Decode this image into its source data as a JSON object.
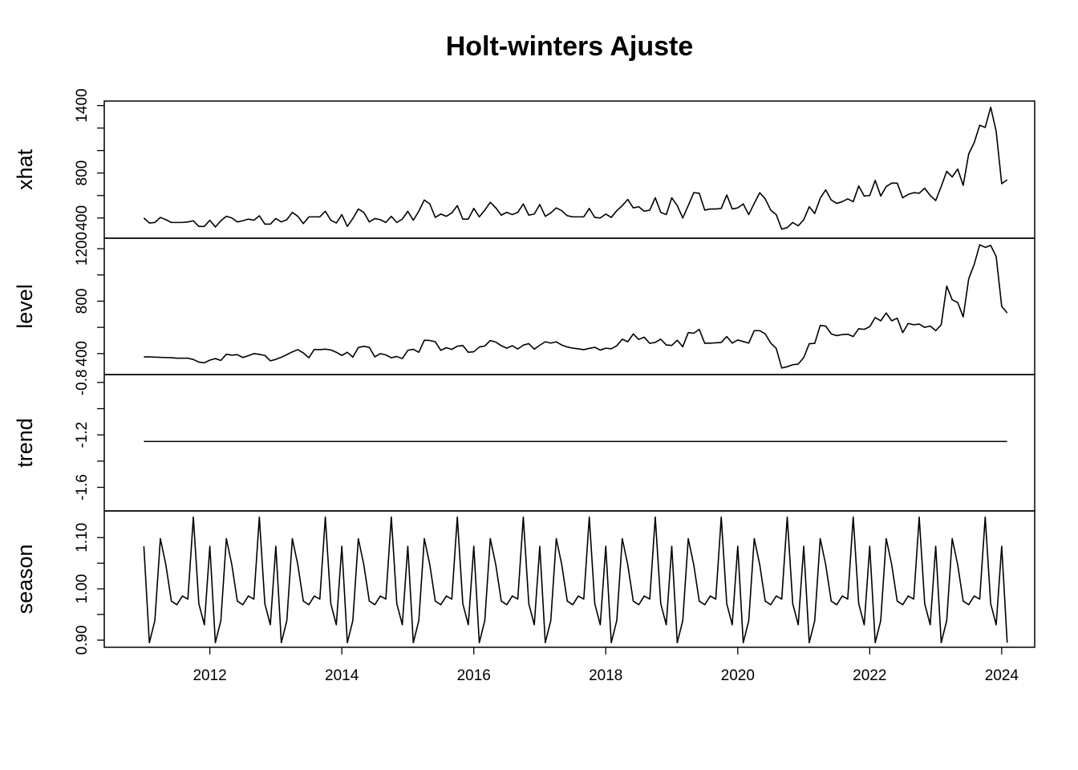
{
  "chart_data": {
    "type": "line",
    "title": "Holt-winters Ajuste",
    "xlabel": "",
    "x_start": 2011.0,
    "x_step": 0.08333333,
    "xlim": [
      2010.4,
      2024.5
    ],
    "x_ticks": [
      2012,
      2014,
      2016,
      2018,
      2020,
      2022,
      2024
    ],
    "x_tick_labels": [
      "2012",
      "2014",
      "2016",
      "2018",
      "2020",
      "2022",
      "2024"
    ],
    "grid": false,
    "legend": "none",
    "series_color": "#000000",
    "panels": [
      {
        "name": "xhat",
        "ylim": [
          220,
          1440
        ],
        "y_ticks": [
          400,
          800,
          1400
        ],
        "y_tick_labels": [
          "400",
          "800",
          "1400"
        ],
        "y_minor_ticks": [
          600,
          1000,
          1200
        ],
        "values": [
          400,
          355,
          360,
          405,
          385,
          360,
          360,
          360,
          365,
          375,
          325,
          325,
          380,
          320,
          375,
          415,
          400,
          365,
          375,
          390,
          380,
          420,
          345,
          345,
          395,
          365,
          385,
          450,
          415,
          350,
          410,
          410,
          410,
          460,
          380,
          355,
          430,
          325,
          395,
          480,
          450,
          365,
          395,
          385,
          360,
          415,
          360,
          390,
          460,
          380,
          460,
          560,
          525,
          405,
          435,
          415,
          445,
          510,
          390,
          390,
          485,
          410,
          470,
          540,
          490,
          425,
          450,
          430,
          450,
          525,
          425,
          435,
          520,
          415,
          445,
          490,
          465,
          420,
          410,
          410,
          410,
          485,
          405,
          400,
          435,
          405,
          465,
          510,
          565,
          490,
          500,
          460,
          470,
          580,
          450,
          430,
          580,
          510,
          400,
          510,
          625,
          620,
          470,
          480,
          480,
          485,
          605,
          480,
          490,
          525,
          430,
          530,
          625,
          570,
          470,
          430,
          300,
          315,
          360,
          330,
          385,
          500,
          440,
          575,
          650,
          560,
          530,
          545,
          570,
          545,
          685,
          595,
          600,
          735,
          595,
          680,
          710,
          710,
          580,
          610,
          625,
          620,
          665,
          600,
          555,
          680,
          815,
          765,
          835,
          690,
          970,
          1070,
          1225,
          1205,
          1385,
          1170,
          705,
          740
        ]
      },
      {
        "name": "level",
        "ylim": [
          240,
          1280
        ],
        "y_ticks": [
          400,
          800,
          1200
        ],
        "y_tick_labels": [
          "400",
          "800",
          "1200"
        ],
        "y_minor_ticks": [
          600,
          1000
        ],
        "values": [
          375,
          375,
          373,
          371,
          370,
          369,
          365,
          365,
          365,
          355,
          335,
          330,
          350,
          362,
          348,
          395,
          388,
          392,
          370,
          384,
          400,
          394,
          386,
          345,
          356,
          372,
          392,
          413,
          430,
          405,
          368,
          432,
          430,
          434,
          428,
          410,
          386,
          410,
          373,
          446,
          456,
          447,
          375,
          400,
          390,
          368,
          378,
          362,
          425,
          433,
          410,
          502,
          500,
          490,
          425,
          445,
          432,
          456,
          462,
          410,
          414,
          450,
          458,
          500,
          488,
          460,
          441,
          460,
          435,
          465,
          476,
          434,
          464,
          490,
          480,
          490,
          465,
          450,
          442,
          436,
          430,
          440,
          448,
          427,
          441,
          437,
          460,
          510,
          490,
          550,
          508,
          525,
          478,
          486,
          510,
          466,
          462,
          502,
          452,
          560,
          555,
          585,
          478,
          480,
          482,
          485,
          530,
          480,
          504,
          492,
          480,
          575,
          575,
          550,
          480,
          440,
          290,
          300,
          315,
          320,
          370,
          475,
          478,
          615,
          610,
          550,
          537,
          545,
          548,
          530,
          590,
          585,
          605,
          675,
          650,
          710,
          650,
          670,
          560,
          630,
          620,
          625,
          600,
          610,
          575,
          620,
          915,
          810,
          790,
          680,
          970,
          1080,
          1230,
          1210,
          1225,
          1140,
          760,
          710
        ]
      },
      {
        "name": "trend",
        "ylim": [
          -1.78,
          -0.74
        ],
        "y_ticks": [
          -0.8,
          -1.2,
          -1.6
        ],
        "y_tick_labels": [
          "-0.8",
          "-1.2",
          "-1.6"
        ],
        "y_minor_ticks": [
          -1.0,
          -1.4
        ],
        "values": [
          -1.25,
          -1.25
        ]
      },
      {
        "name": "season",
        "ylim": [
          0.886,
          1.152
        ],
        "y_ticks": [
          0.9,
          1.0,
          1.1
        ],
        "y_tick_labels": [
          "0.90",
          "1.00",
          "1.10"
        ],
        "y_minor_ticks": [
          0.95,
          1.05
        ],
        "values": [
          1.083,
          0.895,
          0.938,
          1.098,
          1.047,
          0.976,
          0.969,
          0.986,
          0.98,
          1.14,
          0.971,
          0.93
        ]
      }
    ]
  }
}
